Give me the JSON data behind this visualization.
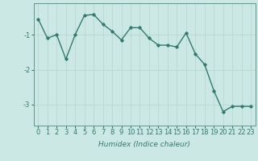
{
  "x": [
    0,
    1,
    2,
    3,
    4,
    5,
    6,
    7,
    8,
    9,
    10,
    11,
    12,
    13,
    14,
    15,
    16,
    17,
    18,
    19,
    20,
    21,
    22,
    23
  ],
  "y": [
    -0.55,
    -1.1,
    -1.0,
    -1.7,
    -1.0,
    -0.45,
    -0.42,
    -0.7,
    -0.9,
    -1.15,
    -0.8,
    -0.8,
    -1.1,
    -1.3,
    -1.3,
    -1.35,
    -0.95,
    -1.55,
    -1.85,
    -2.6,
    -3.2,
    -3.05,
    -3.05,
    -3.05
  ],
  "line_color": "#2e7d6e",
  "marker": "D",
  "markersize": 1.8,
  "linewidth": 1.0,
  "xlabel": "Humidex (Indice chaleur)",
  "xlabel_fontsize": 6.5,
  "xlabel_style": "italic",
  "yticks": [
    -1,
    -2,
    -3
  ],
  "ylim": [
    -3.6,
    -0.1
  ],
  "xlim": [
    -0.5,
    23.5
  ],
  "bg_color": "#cce8e4",
  "grid_color": "#b8d8d2",
  "tick_fontsize": 6,
  "xtick_labels": [
    "0",
    "1",
    "2",
    "3",
    "4",
    "5",
    "6",
    "7",
    "8",
    "9",
    "10",
    "11",
    "12",
    "13",
    "14",
    "15",
    "16",
    "17",
    "18",
    "19",
    "20",
    "21",
    "22",
    "23"
  ],
  "ytick_labels": [
    "-1",
    "-2",
    "-3"
  ]
}
